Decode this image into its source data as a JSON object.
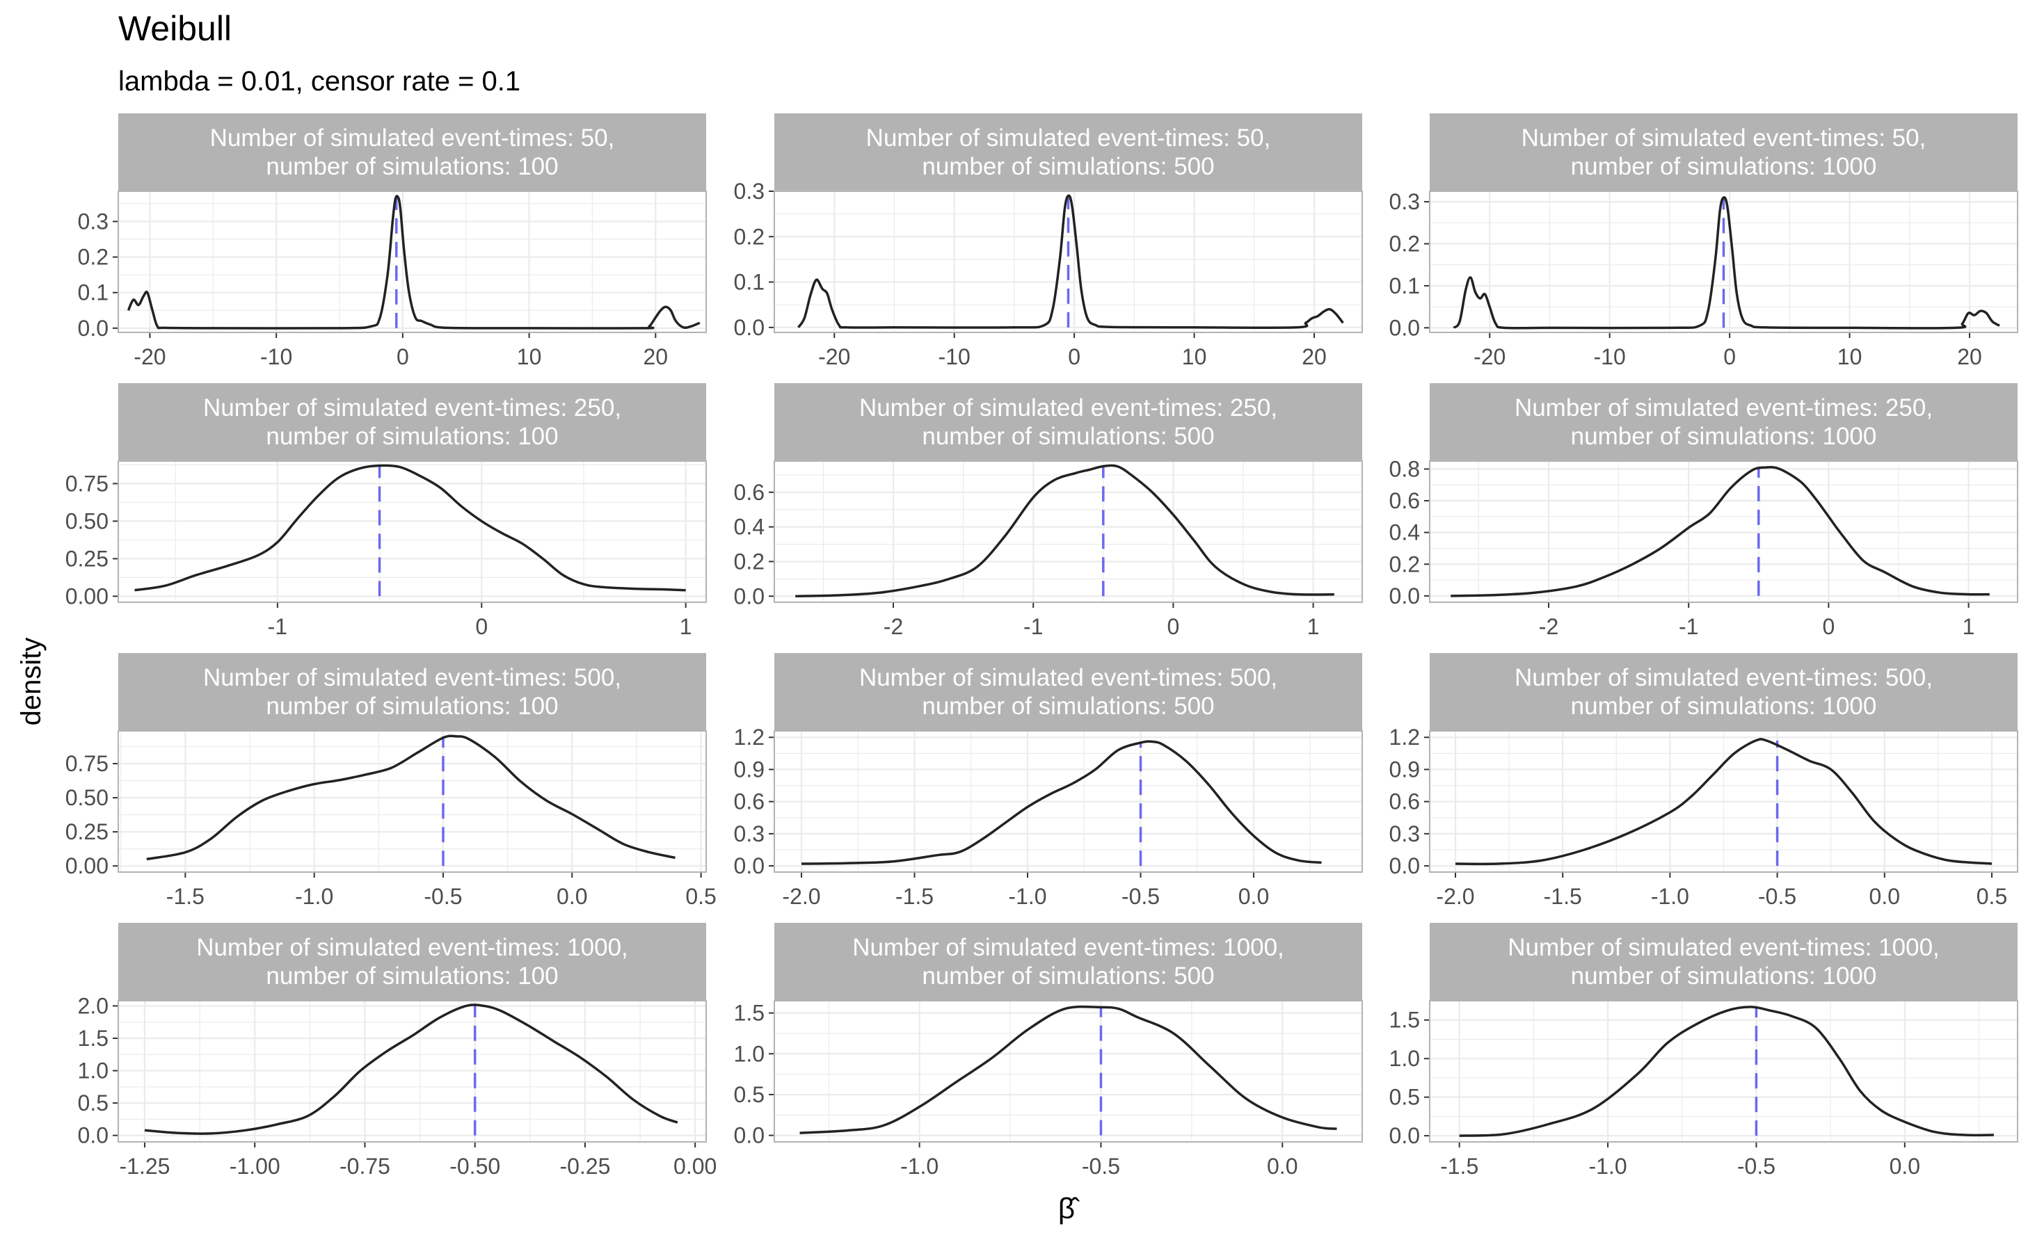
{
  "title": "Weibull",
  "subtitle": "lambda = 0.01, censor rate = 0.1",
  "ylabel": "density",
  "xlabel": "β̂",
  "colors": {
    "strip_bg": "#b3b3b3",
    "strip_text": "#ffffff",
    "grid": "#ebebeb",
    "panel_border": "#b3b3b3",
    "density_line": "#222222",
    "mean_line": "#6a6aee",
    "axis_text": "#4d4d4d"
  },
  "chart_data": [
    {
      "type": "line",
      "n_event_times": 50,
      "n_simulations": 100,
      "strip_line1": "Number of simulated event-times: 50,",
      "strip_line2": "number of simulations: 100",
      "xlim": [
        -22.5,
        24
      ],
      "ylim": [
        -0.012,
        0.385
      ],
      "xticks": [
        -20,
        -10,
        0,
        10,
        20
      ],
      "xtick_labels": [
        "-20",
        "-10",
        "0",
        "10",
        "20"
      ],
      "yticks": [
        0,
        0.1,
        0.2,
        0.3
      ],
      "ytick_labels": [
        "0.0",
        "0.1",
        "0.2",
        "0.3"
      ],
      "mean": -0.5,
      "x": [
        -21.7,
        -21.3,
        -20.9,
        -20.5,
        -20.2,
        -19.8,
        -19.4,
        -18.8,
        -15,
        -5,
        -2.5,
        -1.8,
        -1.2,
        -0.8,
        -0.6,
        -0.4,
        -0.2,
        0.1,
        0.5,
        1,
        1.5,
        2.2,
        3.5,
        10,
        19,
        19.5,
        20,
        20.4,
        20.8,
        21.2,
        21.6,
        22.2,
        22.8,
        23.5
      ],
      "y": [
        0.05,
        0.08,
        0.065,
        0.09,
        0.1,
        0.05,
        0.005,
        0.001,
        0.0,
        0.0,
        0.005,
        0.03,
        0.15,
        0.3,
        0.36,
        0.37,
        0.34,
        0.22,
        0.1,
        0.03,
        0.02,
        0.01,
        0.001,
        0.0,
        0.0,
        0.005,
        0.03,
        0.05,
        0.06,
        0.05,
        0.02,
        0.002,
        0.005,
        0.015
      ]
    },
    {
      "type": "line",
      "n_event_times": 50,
      "n_simulations": 500,
      "strip_line1": "Number of simulated event-times: 50,",
      "strip_line2": "number of simulations: 500",
      "xlim": [
        -25,
        24
      ],
      "ylim": [
        -0.011,
        0.3
      ],
      "xticks": [
        -20,
        -10,
        0,
        10,
        20
      ],
      "xtick_labels": [
        "-20",
        "-10",
        "0",
        "10",
        "20"
      ],
      "yticks": [
        0,
        0.1,
        0.2,
        0.3
      ],
      "ytick_labels": [
        "0.0",
        "0.1",
        "0.2",
        "0.3"
      ],
      "mean": -0.5,
      "x": [
        -23,
        -22.5,
        -22,
        -21.5,
        -21,
        -20.6,
        -20.2,
        -19.6,
        -19,
        -15,
        -5,
        -2.5,
        -1.8,
        -1.2,
        -0.8,
        -0.5,
        -0.2,
        0.2,
        0.6,
        1.1,
        1.8,
        3,
        10,
        18.5,
        19.3,
        19.8,
        20.3,
        20.8,
        21.3,
        21.8,
        22.4
      ],
      "y": [
        0.0,
        0.02,
        0.07,
        0.105,
        0.085,
        0.075,
        0.04,
        0.005,
        0.0,
        0.0,
        0.0,
        0.005,
        0.04,
        0.15,
        0.26,
        0.29,
        0.27,
        0.18,
        0.08,
        0.02,
        0.005,
        0.001,
        0.0,
        0.0,
        0.01,
        0.02,
        0.025,
        0.035,
        0.04,
        0.03,
        0.01
      ]
    },
    {
      "type": "line",
      "n_event_times": 50,
      "n_simulations": 1000,
      "strip_line1": "Number of simulated event-times: 50,",
      "strip_line2": "number of simulations: 1000",
      "xlim": [
        -25,
        24
      ],
      "ylim": [
        -0.011,
        0.325
      ],
      "xticks": [
        -20,
        -10,
        0,
        10,
        20
      ],
      "xtick_labels": [
        "-20",
        "-10",
        "0",
        "10",
        "20"
      ],
      "yticks": [
        0,
        0.1,
        0.2,
        0.3
      ],
      "ytick_labels": [
        "0.0",
        "0.1",
        "0.2",
        "0.3"
      ],
      "mean": -0.5,
      "x": [
        -23,
        -22.5,
        -22,
        -21.6,
        -21.2,
        -20.8,
        -20.4,
        -20,
        -19.5,
        -18.8,
        -15,
        -5,
        -2.5,
        -1.8,
        -1.2,
        -0.8,
        -0.5,
        -0.2,
        0.2,
        0.6,
        1.1,
        1.8,
        3,
        10,
        18.8,
        19.4,
        19.9,
        20.4,
        20.9,
        21.4,
        21.9,
        22.5
      ],
      "y": [
        0.0,
        0.015,
        0.09,
        0.12,
        0.085,
        0.07,
        0.08,
        0.05,
        0.01,
        0.0,
        0.0,
        0.0,
        0.005,
        0.04,
        0.16,
        0.28,
        0.31,
        0.29,
        0.19,
        0.08,
        0.02,
        0.005,
        0.001,
        0.0,
        0.0,
        0.01,
        0.035,
        0.03,
        0.04,
        0.035,
        0.015,
        0.005
      ]
    },
    {
      "type": "line",
      "n_event_times": 250,
      "n_simulations": 100,
      "strip_line1": "Number of simulated event-times: 250,",
      "strip_line2": "number of simulations: 100",
      "xlim": [
        -1.78,
        1.1
      ],
      "ylim": [
        -0.04,
        0.9
      ],
      "xticks": [
        -1,
        0,
        1
      ],
      "xtick_labels": [
        "-1",
        "0",
        "1"
      ],
      "yticks": [
        0,
        0.25,
        0.5,
        0.75
      ],
      "ytick_labels": [
        "0.00",
        "0.25",
        "0.50",
        "0.75"
      ],
      "mean": -0.5,
      "x": [
        -1.7,
        -1.55,
        -1.4,
        -1.25,
        -1.1,
        -1.0,
        -0.9,
        -0.8,
        -0.7,
        -0.6,
        -0.5,
        -0.4,
        -0.3,
        -0.2,
        -0.1,
        0.0,
        0.1,
        0.2,
        0.3,
        0.4,
        0.5,
        0.6,
        0.75,
        0.9,
        1.0
      ],
      "y": [
        0.04,
        0.07,
        0.14,
        0.2,
        0.27,
        0.36,
        0.52,
        0.67,
        0.79,
        0.85,
        0.87,
        0.86,
        0.8,
        0.72,
        0.6,
        0.5,
        0.42,
        0.35,
        0.25,
        0.14,
        0.08,
        0.06,
        0.05,
        0.045,
        0.04
      ]
    },
    {
      "type": "line",
      "n_event_times": 250,
      "n_simulations": 500,
      "strip_line1": "Number of simulated event-times: 250,",
      "strip_line2": "number of simulations: 500",
      "xlim": [
        -2.85,
        1.35
      ],
      "ylim": [
        -0.035,
        0.78
      ],
      "xticks": [
        -2,
        -1,
        0,
        1
      ],
      "xtick_labels": [
        "-2",
        "-1",
        "0",
        "1"
      ],
      "yticks": [
        0,
        0.2,
        0.4,
        0.6
      ],
      "ytick_labels": [
        "0.0",
        "0.2",
        "0.4",
        "0.6"
      ],
      "mean": -0.5,
      "x": [
        -2.7,
        -2.4,
        -2.1,
        -1.8,
        -1.6,
        -1.4,
        -1.2,
        -1.0,
        -0.85,
        -0.7,
        -0.6,
        -0.5,
        -0.4,
        -0.3,
        -0.15,
        0.0,
        0.15,
        0.3,
        0.5,
        0.7,
        0.9,
        1.15
      ],
      "y": [
        0.0,
        0.005,
        0.02,
        0.06,
        0.1,
        0.17,
        0.35,
        0.57,
        0.67,
        0.71,
        0.73,
        0.75,
        0.75,
        0.7,
        0.6,
        0.47,
        0.32,
        0.17,
        0.07,
        0.025,
        0.01,
        0.01
      ]
    },
    {
      "type": "line",
      "n_event_times": 250,
      "n_simulations": 1000,
      "strip_line1": "Number of simulated event-times: 250,",
      "strip_line2": "number of simulations: 1000",
      "xlim": [
        -2.85,
        1.35
      ],
      "ylim": [
        -0.04,
        0.85
      ],
      "xticks": [
        -2,
        -1,
        0,
        1
      ],
      "xtick_labels": [
        "-2",
        "-1",
        "0",
        "1"
      ],
      "yticks": [
        0,
        0.2,
        0.4,
        0.6,
        0.8
      ],
      "ytick_labels": [
        "0.0",
        "0.2",
        "0.4",
        "0.6",
        "0.8"
      ],
      "mean": -0.5,
      "x": [
        -2.7,
        -2.4,
        -2.1,
        -1.8,
        -1.6,
        -1.4,
        -1.2,
        -1.0,
        -0.85,
        -0.7,
        -0.55,
        -0.45,
        -0.35,
        -0.2,
        -0.1,
        0.0,
        0.1,
        0.25,
        0.4,
        0.6,
        0.8,
        1.0,
        1.15
      ],
      "y": [
        0.0,
        0.005,
        0.02,
        0.06,
        0.12,
        0.2,
        0.3,
        0.43,
        0.52,
        0.68,
        0.79,
        0.81,
        0.8,
        0.72,
        0.62,
        0.5,
        0.38,
        0.22,
        0.15,
        0.06,
        0.02,
        0.01,
        0.01
      ]
    },
    {
      "type": "line",
      "n_event_times": 500,
      "n_simulations": 100,
      "strip_line1": "Number of simulated event-times: 500,",
      "strip_line2": "number of simulations: 100",
      "xlim": [
        -1.76,
        0.52
      ],
      "ylim": [
        -0.045,
        0.99
      ],
      "xticks": [
        -1.5,
        -1.0,
        -0.5,
        0.0,
        0.5
      ],
      "xtick_labels": [
        "-1.5",
        "-1.0",
        "-0.5",
        "0.0",
        "0.5"
      ],
      "yticks": [
        0,
        0.25,
        0.5,
        0.75
      ],
      "ytick_labels": [
        "0.00",
        "0.25",
        "0.50",
        "0.75"
      ],
      "mean": -0.5,
      "x": [
        -1.65,
        -1.5,
        -1.4,
        -1.3,
        -1.2,
        -1.1,
        -1.0,
        -0.9,
        -0.8,
        -0.7,
        -0.6,
        -0.5,
        -0.45,
        -0.4,
        -0.3,
        -0.2,
        -0.1,
        0.0,
        0.1,
        0.2,
        0.3,
        0.4
      ],
      "y": [
        0.05,
        0.1,
        0.2,
        0.36,
        0.48,
        0.55,
        0.6,
        0.63,
        0.67,
        0.72,
        0.83,
        0.94,
        0.95,
        0.93,
        0.8,
        0.62,
        0.48,
        0.38,
        0.27,
        0.16,
        0.1,
        0.06
      ]
    },
    {
      "type": "line",
      "n_event_times": 500,
      "n_simulations": 500,
      "strip_line1": "Number of simulated event-times: 500,",
      "strip_line2": "number of simulations: 500",
      "xlim": [
        -2.12,
        0.48
      ],
      "ylim": [
        -0.058,
        1.26
      ],
      "xticks": [
        -2.0,
        -1.5,
        -1.0,
        -0.5,
        0.0
      ],
      "xtick_labels": [
        "-2.0",
        "-1.5",
        "-1.0",
        "-0.5",
        "0.0"
      ],
      "yticks": [
        0,
        0.3,
        0.6,
        0.9,
        1.2
      ],
      "ytick_labels": [
        "0.0",
        "0.3",
        "0.6",
        "0.9",
        "1.2"
      ],
      "mean": -0.5,
      "x": [
        -2.0,
        -1.8,
        -1.6,
        -1.4,
        -1.3,
        -1.2,
        -1.1,
        -1.0,
        -0.9,
        -0.8,
        -0.7,
        -0.6,
        -0.5,
        -0.45,
        -0.4,
        -0.3,
        -0.2,
        -0.1,
        0.0,
        0.1,
        0.2,
        0.3
      ],
      "y": [
        0.02,
        0.025,
        0.04,
        0.1,
        0.13,
        0.25,
        0.4,
        0.55,
        0.67,
        0.77,
        0.9,
        1.08,
        1.15,
        1.16,
        1.13,
        0.98,
        0.76,
        0.5,
        0.28,
        0.12,
        0.05,
        0.03
      ]
    },
    {
      "type": "line",
      "n_event_times": 500,
      "n_simulations": 1000,
      "strip_line1": "Number of simulated event-times: 500,",
      "strip_line2": "number of simulations: 1000",
      "xlim": [
        -2.12,
        0.62
      ],
      "ylim": [
        -0.058,
        1.26
      ],
      "xticks": [
        -2.0,
        -1.5,
        -1.0,
        -0.5,
        0.0,
        0.5
      ],
      "xtick_labels": [
        "-2.0",
        "-1.5",
        "-1.0",
        "-0.5",
        "0.0",
        "0.5"
      ],
      "yticks": [
        0,
        0.3,
        0.6,
        0.9,
        1.2
      ],
      "ytick_labels": [
        "0.0",
        "0.3",
        "0.6",
        "0.9",
        "1.2"
      ],
      "mean": -0.5,
      "x": [
        -2.0,
        -1.8,
        -1.6,
        -1.4,
        -1.2,
        -1.0,
        -0.9,
        -0.8,
        -0.7,
        -0.6,
        -0.55,
        -0.45,
        -0.35,
        -0.25,
        -0.15,
        -0.05,
        0.05,
        0.15,
        0.3,
        0.5
      ],
      "y": [
        0.02,
        0.02,
        0.05,
        0.15,
        0.3,
        0.5,
        0.65,
        0.85,
        1.05,
        1.17,
        1.17,
        1.08,
        0.98,
        0.9,
        0.68,
        0.42,
        0.25,
        0.14,
        0.05,
        0.02
      ]
    },
    {
      "type": "line",
      "n_event_times": 1000,
      "n_simulations": 100,
      "strip_line1": "Number of simulated event-times: 1000,",
      "strip_line2": "number of simulations: 100",
      "xlim": [
        -1.31,
        0.025
      ],
      "ylim": [
        -0.1,
        2.08
      ],
      "xticks": [
        -1.25,
        -1.0,
        -0.75,
        -0.5,
        -0.25,
        0.0
      ],
      "xtick_labels": [
        "-1.25",
        "-1.00",
        "-0.75",
        "-0.50",
        "-0.25",
        "0.00"
      ],
      "yticks": [
        0,
        0.5,
        1.0,
        1.5,
        2.0
      ],
      "ytick_labels": [
        "0.0",
        "0.5",
        "1.0",
        "1.5",
        "2.0"
      ],
      "mean": -0.5,
      "x": [
        -1.25,
        -1.18,
        -1.1,
        -1.02,
        -0.95,
        -0.88,
        -0.82,
        -0.76,
        -0.7,
        -0.64,
        -0.58,
        -0.52,
        -0.48,
        -0.44,
        -0.38,
        -0.32,
        -0.26,
        -0.2,
        -0.14,
        -0.08,
        -0.04
      ],
      "y": [
        0.08,
        0.04,
        0.03,
        0.08,
        0.17,
        0.3,
        0.6,
        1.0,
        1.3,
        1.55,
        1.82,
        2.0,
        2.0,
        1.92,
        1.7,
        1.45,
        1.2,
        0.9,
        0.55,
        0.3,
        0.2
      ]
    },
    {
      "type": "line",
      "n_event_times": 1000,
      "n_simulations": 500,
      "strip_line1": "Number of simulated event-times: 1000,",
      "strip_line2": "number of simulations: 500",
      "xlim": [
        -1.4,
        0.22
      ],
      "ylim": [
        -0.08,
        1.65
      ],
      "xticks": [
        -1.0,
        -0.5,
        0.0
      ],
      "xtick_labels": [
        "-1.0",
        "-0.5",
        "0.0"
      ],
      "yticks": [
        0,
        0.5,
        1.0,
        1.5
      ],
      "ytick_labels": [
        "0.0",
        "0.5",
        "1.0",
        "1.5"
      ],
      "mean": -0.5,
      "x": [
        -1.33,
        -1.2,
        -1.1,
        -1.0,
        -0.9,
        -0.8,
        -0.7,
        -0.6,
        -0.5,
        -0.45,
        -0.4,
        -0.3,
        -0.2,
        -0.1,
        0.0,
        0.1,
        0.15
      ],
      "y": [
        0.03,
        0.06,
        0.12,
        0.35,
        0.65,
        0.95,
        1.3,
        1.55,
        1.57,
        1.55,
        1.45,
        1.25,
        0.85,
        0.45,
        0.22,
        0.1,
        0.08
      ]
    },
    {
      "type": "line",
      "n_event_times": 1000,
      "n_simulations": 1000,
      "strip_line1": "Number of simulated event-times: 1000,",
      "strip_line2": "number of simulations: 1000",
      "xlim": [
        -1.6,
        0.38
      ],
      "ylim": [
        -0.08,
        1.75
      ],
      "xticks": [
        -1.5,
        -1.0,
        -0.5,
        0.0
      ],
      "xtick_labels": [
        "-1.5",
        "-1.0",
        "-0.5",
        "0.0"
      ],
      "yticks": [
        0,
        0.5,
        1.0,
        1.5
      ],
      "ytick_labels": [
        "0.0",
        "0.5",
        "1.0",
        "1.5"
      ],
      "mean": -0.5,
      "x": [
        -1.5,
        -1.35,
        -1.2,
        -1.05,
        -0.9,
        -0.8,
        -0.7,
        -0.6,
        -0.52,
        -0.45,
        -0.38,
        -0.3,
        -0.22,
        -0.15,
        -0.08,
        0.0,
        0.1,
        0.2,
        0.3
      ],
      "y": [
        0.0,
        0.02,
        0.15,
        0.35,
        0.8,
        1.2,
        1.45,
        1.62,
        1.67,
        1.62,
        1.55,
        1.4,
        1.0,
        0.58,
        0.33,
        0.18,
        0.05,
        0.01,
        0.01
      ]
    }
  ]
}
